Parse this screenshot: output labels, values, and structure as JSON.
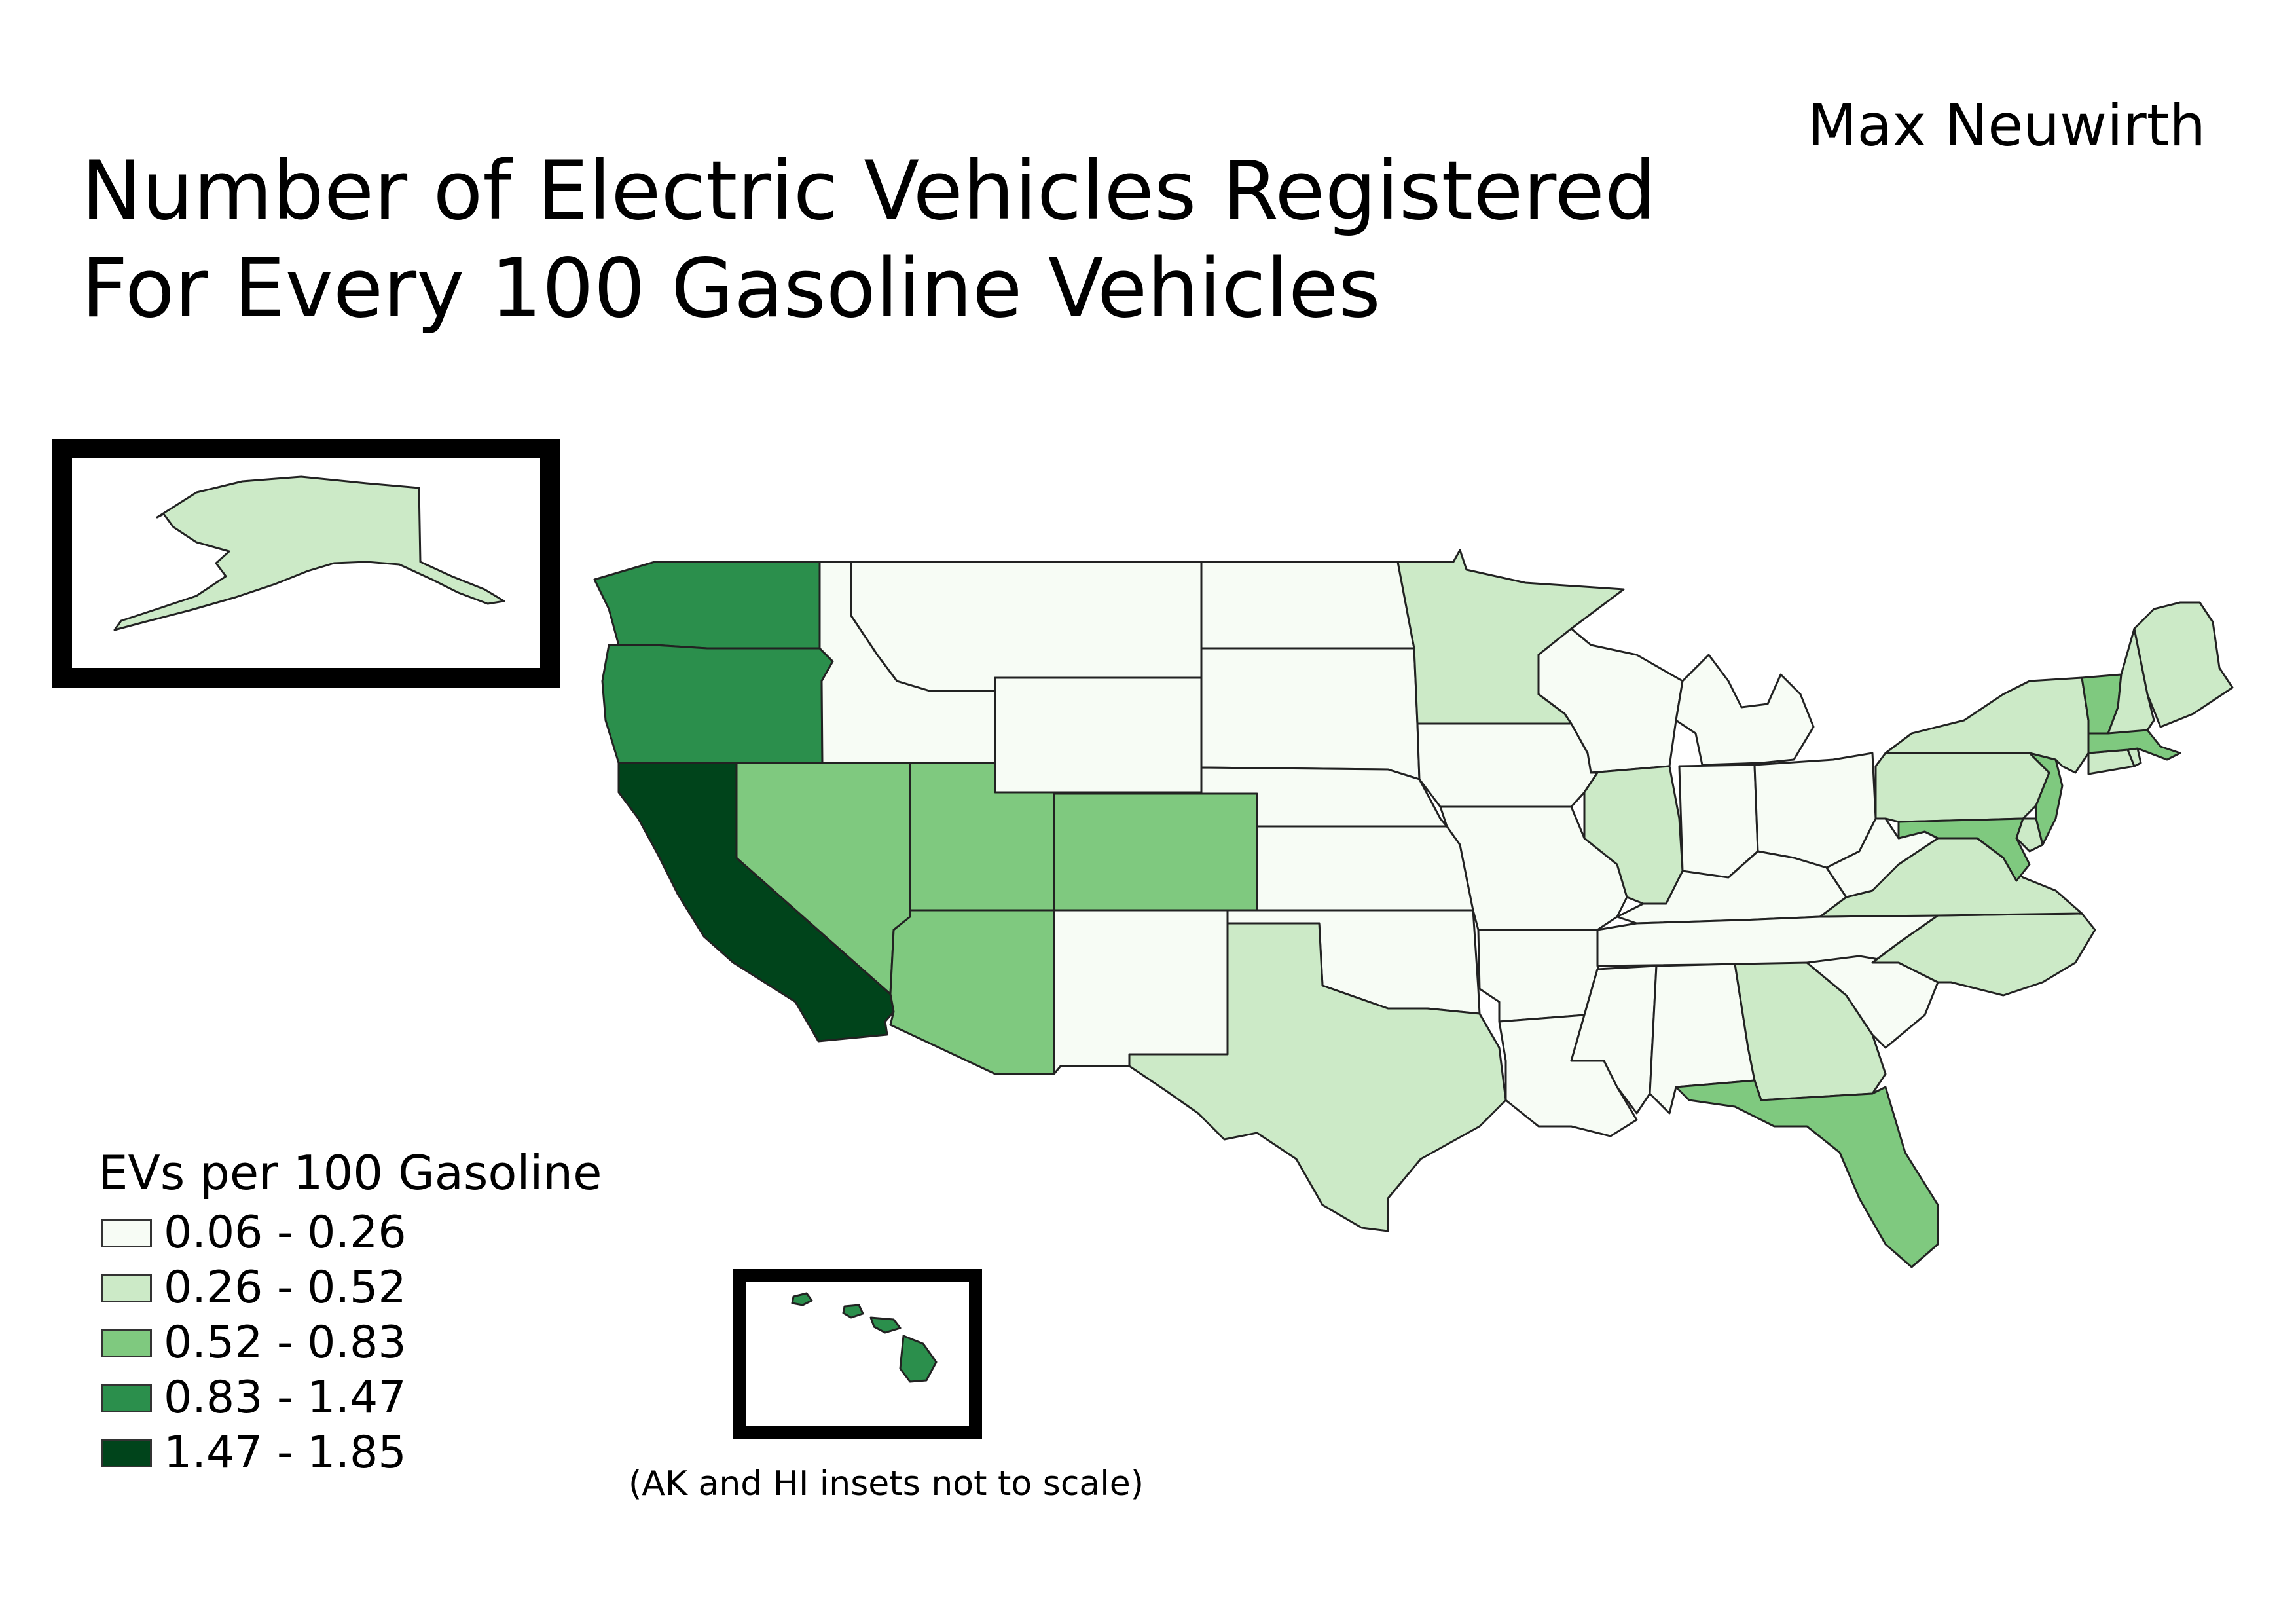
{
  "author": "Max Neuwirth",
  "title_lines": [
    "Number of Electric Vehicles Registered",
    "For Every 100 Gasoline Vehicles"
  ],
  "legend": {
    "title": "EVs per 100 Gasoline",
    "classes": [
      {
        "label": "0.06 - 0.26",
        "color": "#f7fcf5"
      },
      {
        "label": "0.26 - 0.52",
        "color": "#cceac7"
      },
      {
        "label": "0.52 - 0.83",
        "color": "#7fc97f"
      },
      {
        "label": "0.83 - 1.47",
        "color": "#2b8f4c"
      },
      {
        "label": "1.47 - 1.85",
        "color": "#00441b"
      }
    ]
  },
  "inset_note": "(AK and HI insets not to scale)",
  "state_classes": {
    "WA": 3,
    "OR": 3,
    "CA": 4,
    "NV": 2,
    "UT": 2,
    "AZ": 2,
    "CO": 2,
    "ID": 0,
    "MT": 0,
    "WY": 0,
    "NM": 0,
    "ND": 0,
    "SD": 0,
    "NE": 0,
    "KS": 0,
    "OK": 0,
    "TX": 1,
    "MN": 1,
    "IA": 0,
    "MO": 0,
    "AR": 0,
    "LA": 0,
    "WI": 0,
    "IL": 1,
    "MS": 0,
    "AL": 0,
    "TN": 0,
    "KY": 0,
    "IN": 0,
    "MI": 0,
    "OH": 0,
    "WV": 0,
    "VA": 1,
    "NC": 1,
    "SC": 0,
    "GA": 1,
    "FL": 2,
    "PA": 1,
    "NY": 1,
    "VT": 2,
    "NH": 1,
    "ME": 1,
    "MA": 2,
    "RI": 1,
    "CT": 1,
    "NJ": 2,
    "DE": 1,
    "MD": 2,
    "AK": 1,
    "HI": 3
  }
}
